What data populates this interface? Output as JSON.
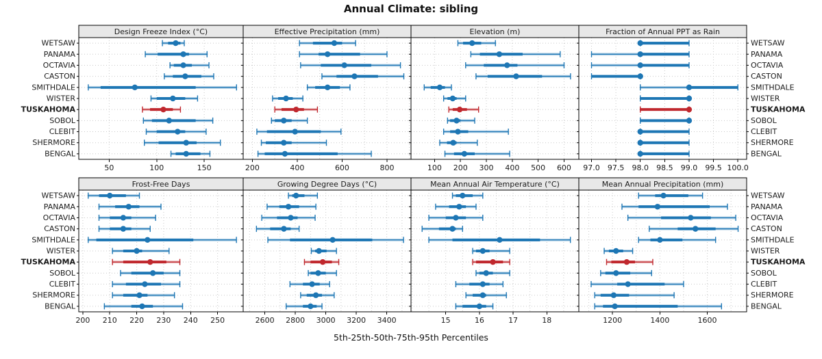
{
  "title": "Annual Climate: sibling",
  "caption": "5th-25th-50th-75th-95th Percentiles",
  "sites": [
    "WETSAW",
    "PANAMA",
    "OCTAVIA",
    "CASTON",
    "SMITHDALE",
    "WISTER",
    "TUSKAHOMA",
    "SOBOL",
    "CLEBIT",
    "SHERMORE",
    "BENGAL"
  ],
  "highlight_site": "TUSKAHOMA",
  "colors": {
    "series": "#1d76b4",
    "highlight": "#c0282e",
    "grid": "#c8c8c8",
    "header_bg": "#e8e8e8",
    "border": "#000000",
    "text": "#1a1a1a"
  },
  "chart_data": {
    "type": "percentile_dotplot",
    "percentile_labels": [
      "5th",
      "25th",
      "50th",
      "75th",
      "95th"
    ],
    "grid": [
      2,
      4
    ],
    "legend_position": "none",
    "panels": [
      {
        "title": "Design Freeze Index (°C)",
        "row": 0,
        "col": 0,
        "domain": [
          18,
          191
        ],
        "ticks": [
          50,
          100,
          150
        ],
        "gridlines": [
          50,
          100,
          150
        ],
        "values": [
          [
            106,
            112,
            120,
            125,
            129
          ],
          [
            88,
            101,
            128,
            134,
            153
          ],
          [
            114,
            118,
            128,
            137,
            155
          ],
          [
            108,
            117,
            130,
            147,
            160
          ],
          [
            28,
            41,
            77,
            141,
            184
          ],
          [
            94,
            100,
            117,
            130,
            143
          ],
          [
            85,
            93,
            107,
            117,
            125
          ],
          [
            86,
            95,
            113,
            141,
            159
          ],
          [
            89,
            100,
            122,
            130,
            152
          ],
          [
            87,
            102,
            131,
            142,
            167
          ],
          [
            115,
            120,
            131,
            146,
            156
          ]
        ]
      },
      {
        "title": "Effective Precipitation (mm)",
        "row": 0,
        "col": 1,
        "domain": [
          159,
          907
        ],
        "ticks": [
          200,
          400,
          600,
          800
        ],
        "gridlines": [
          200,
          300,
          400,
          500,
          600,
          700,
          800,
          900
        ],
        "values": [
          [
            410,
            470,
            565,
            600,
            660
          ],
          [
            410,
            495,
            535,
            680,
            800
          ],
          [
            415,
            505,
            610,
            730,
            860
          ],
          [
            510,
            575,
            655,
            760,
            875
          ],
          [
            445,
            480,
            535,
            590,
            635
          ],
          [
            290,
            315,
            350,
            380,
            425
          ],
          [
            300,
            330,
            395,
            430,
            490
          ],
          [
            285,
            300,
            340,
            375,
            445
          ],
          [
            220,
            265,
            390,
            505,
            595
          ],
          [
            240,
            260,
            340,
            375,
            530
          ],
          [
            225,
            255,
            345,
            580,
            730
          ]
        ]
      },
      {
        "title": "Elevation (m)",
        "row": 0,
        "col": 2,
        "domain": [
          9,
          657
        ],
        "ticks": [
          100,
          200,
          300,
          400,
          500,
          600
        ],
        "gridlines": [
          100,
          200,
          300,
          400,
          500,
          600
        ],
        "values": [
          [
            190,
            210,
            245,
            280,
            335
          ],
          [
            240,
            275,
            350,
            440,
            585
          ],
          [
            220,
            290,
            380,
            420,
            600
          ],
          [
            260,
            305,
            415,
            515,
            625
          ],
          [
            60,
            85,
            120,
            140,
            165
          ],
          [
            135,
            150,
            170,
            185,
            220
          ],
          [
            155,
            170,
            197,
            225,
            270
          ],
          [
            150,
            160,
            185,
            200,
            255
          ],
          [
            135,
            160,
            190,
            230,
            385
          ],
          [
            120,
            148,
            172,
            185,
            265
          ],
          [
            140,
            175,
            215,
            255,
            390
          ]
        ]
      },
      {
        "title": "Fraction of Annual PPT as Rain",
        "row": 0,
        "col": 3,
        "domain": [
          96.74,
          100.18
        ],
        "ticks": [
          97,
          97.5,
          98,
          98.5,
          99,
          99.5,
          100
        ],
        "tick_labels": [
          "97.0",
          "97.5",
          "98.0",
          "98.5",
          "99.0",
          "99.5",
          "100.0"
        ],
        "gridlines": [
          97,
          97.5,
          98,
          98.5,
          99,
          99.5,
          100
        ],
        "values": [
          [
            98,
            98,
            98,
            99,
            99
          ],
          [
            97,
            98,
            98,
            99,
            99
          ],
          [
            97,
            98,
            98,
            99,
            99
          ],
          [
            97,
            97,
            98,
            98,
            98
          ],
          [
            98,
            99,
            99,
            100,
            100
          ],
          [
            98,
            98,
            99,
            99,
            99
          ],
          [
            98,
            98,
            99,
            99,
            99
          ],
          [
            98,
            98,
            99,
            99,
            99
          ],
          [
            98,
            98,
            98,
            99,
            99
          ],
          [
            98,
            98,
            98,
            99,
            99
          ],
          [
            98,
            98,
            98,
            99,
            99
          ]
        ]
      },
      {
        "title": "Frost-Free Days",
        "row": 1,
        "col": 0,
        "domain": [
          198.5,
          259.5
        ],
        "ticks": [
          200,
          210,
          220,
          230,
          240,
          250
        ],
        "gridlines": [
          200,
          210,
          220,
          230,
          240,
          250
        ],
        "values": [
          [
            202,
            206,
            210,
            216,
            221
          ],
          [
            206,
            212,
            217,
            221,
            229
          ],
          [
            206,
            210,
            215,
            218,
            227
          ],
          [
            206,
            210,
            215,
            218,
            225
          ],
          [
            202,
            205,
            224,
            241,
            257
          ],
          [
            211,
            215,
            220,
            222,
            232
          ],
          [
            211,
            215,
            225,
            231,
            236
          ],
          [
            214,
            218,
            226,
            230,
            236
          ],
          [
            211,
            216,
            223,
            229,
            236
          ],
          [
            211,
            215,
            221,
            224,
            234
          ],
          [
            208,
            218,
            222,
            226,
            237
          ]
        ]
      },
      {
        "title": "Growing Degree Days (°C)",
        "row": 1,
        "col": 1,
        "domain": [
          2458,
          3559
        ],
        "ticks": [
          2600,
          2800,
          3000,
          3200,
          3400
        ],
        "gridlines": [
          2500,
          2600,
          2700,
          2800,
          2900,
          3000,
          3100,
          3200,
          3300,
          3400,
          3500
        ],
        "values": [
          [
            2755,
            2780,
            2805,
            2860,
            2945
          ],
          [
            2615,
            2695,
            2755,
            2825,
            2935
          ],
          [
            2580,
            2680,
            2770,
            2815,
            2930
          ],
          [
            2545,
            2635,
            2725,
            2770,
            2825
          ],
          [
            2620,
            2765,
            3045,
            3305,
            3510
          ],
          [
            2905,
            2930,
            2955,
            3005,
            3070
          ],
          [
            2860,
            2900,
            2980,
            3040,
            3085
          ],
          [
            2885,
            2900,
            2950,
            3000,
            3070
          ],
          [
            2765,
            2850,
            2910,
            2960,
            3025
          ],
          [
            2835,
            2875,
            2935,
            2975,
            3055
          ],
          [
            2740,
            2850,
            2900,
            2940,
            2975
          ]
        ]
      },
      {
        "title": "Mean Annual Air Temperature (°C)",
        "row": 1,
        "col": 2,
        "domain": [
          13.97,
          18.95
        ],
        "ticks": [
          15,
          16,
          17,
          18
        ],
        "gridlines": [
          14,
          14.5,
          15,
          15.5,
          16,
          16.5,
          17,
          17.5,
          18,
          18.5
        ],
        "values": [
          [
            15.2,
            15.3,
            15.5,
            15.8,
            16.1
          ],
          [
            14.7,
            15.1,
            15.4,
            15.6,
            15.9
          ],
          [
            14.5,
            15.0,
            15.3,
            15.6,
            16.1
          ],
          [
            14.3,
            14.8,
            15.2,
            15.3,
            15.5
          ],
          [
            14.5,
            15.2,
            16.6,
            17.8,
            18.7
          ],
          [
            15.8,
            15.9,
            16.1,
            16.3,
            16.9
          ],
          [
            15.8,
            15.9,
            16.4,
            16.7,
            16.9
          ],
          [
            15.9,
            16.0,
            16.2,
            16.4,
            16.9
          ],
          [
            15.3,
            15.7,
            16.1,
            16.3,
            16.7
          ],
          [
            15.6,
            15.8,
            16.1,
            16.2,
            16.8
          ],
          [
            15.3,
            15.5,
            16.0,
            16.2,
            16.4
          ]
        ]
      },
      {
        "title": "Mean Annual Precipitation (mm)",
        "row": 1,
        "col": 3,
        "domain": [
          1058,
          1766
        ],
        "ticks": [
          1200,
          1400,
          1600
        ],
        "gridlines": [
          1100,
          1200,
          1300,
          1400,
          1500,
          1600,
          1700
        ],
        "values": [
          [
            1310,
            1380,
            1415,
            1520,
            1580
          ],
          [
            1240,
            1310,
            1390,
            1610,
            1685
          ],
          [
            1265,
            1405,
            1530,
            1615,
            1720
          ],
          [
            1355,
            1475,
            1550,
            1635,
            1730
          ],
          [
            1310,
            1360,
            1400,
            1495,
            1635
          ],
          [
            1165,
            1185,
            1215,
            1245,
            1285
          ],
          [
            1175,
            1195,
            1260,
            1295,
            1370
          ],
          [
            1150,
            1170,
            1215,
            1275,
            1365
          ],
          [
            1110,
            1220,
            1265,
            1420,
            1500
          ],
          [
            1125,
            1150,
            1205,
            1270,
            1460
          ],
          [
            1125,
            1160,
            1210,
            1475,
            1660
          ]
        ]
      }
    ]
  }
}
